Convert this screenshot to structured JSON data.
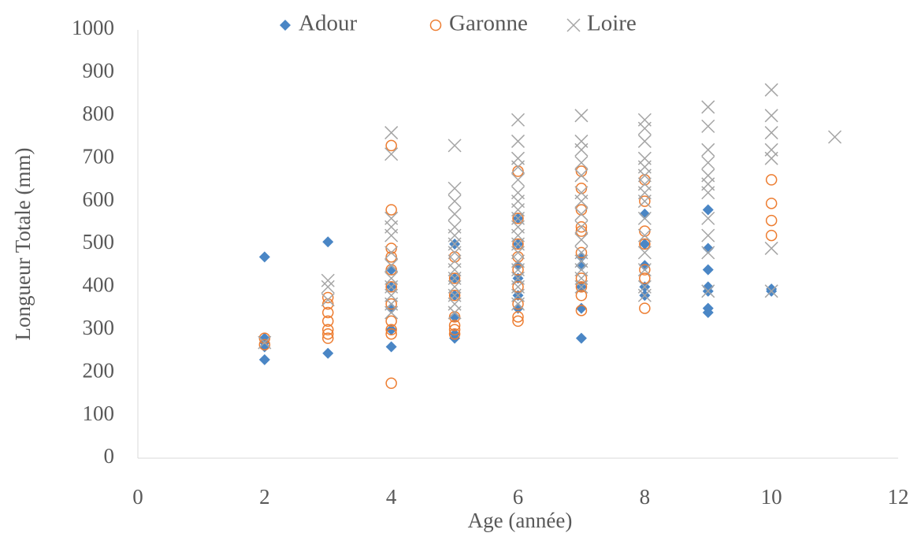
{
  "chart_data": {
    "type": "scatter",
    "xlabel": "Age (année)",
    "ylabel": "Longueur  Totale (mm)",
    "xlim": [
      0,
      12
    ],
    "xticks": [
      0,
      2,
      4,
      6,
      8,
      10,
      12
    ],
    "ylim": [
      0,
      1000
    ],
    "yticks": [
      0,
      100,
      200,
      300,
      400,
      500,
      600,
      700,
      800,
      900,
      1000
    ],
    "legend": "top",
    "series": [
      {
        "name": "Adour",
        "color": "#4a86c5",
        "marker": "diamond",
        "x": [
          2,
          2,
          2,
          2,
          2,
          3,
          3,
          4,
          4,
          4,
          4,
          4,
          5,
          5,
          5,
          5,
          5,
          5,
          6,
          6,
          6,
          6,
          6,
          6,
          7,
          7,
          7,
          7,
          7,
          8,
          8,
          8,
          8,
          8,
          9,
          9,
          9,
          9,
          9,
          9,
          9,
          10,
          10
        ],
        "y": [
          470,
          280,
          270,
          260,
          230,
          505,
          245,
          440,
          400,
          350,
          300,
          260,
          500,
          420,
          380,
          330,
          290,
          280,
          560,
          500,
          450,
          420,
          380,
          350,
          470,
          450,
          400,
          350,
          280,
          570,
          500,
          450,
          400,
          380,
          580,
          490,
          440,
          400,
          390,
          350,
          340,
          395,
          390
        ]
      },
      {
        "name": "Garonne",
        "color": "#ed7d31",
        "marker": "circle",
        "x": [
          2,
          2,
          3,
          3,
          3,
          3,
          3,
          3,
          3,
          4,
          4,
          4,
          4,
          4,
          4,
          4,
          4,
          4,
          4,
          4,
          5,
          5,
          5,
          5,
          5,
          5,
          5,
          6,
          6,
          6,
          6,
          6,
          6,
          6,
          6,
          6,
          7,
          7,
          7,
          7,
          7,
          7,
          7,
          7,
          7,
          7,
          8,
          8,
          8,
          8,
          8,
          8,
          8,
          10,
          10,
          10,
          10
        ],
        "y": [
          280,
          265,
          375,
          360,
          340,
          320,
          300,
          290,
          280,
          730,
          580,
          490,
          470,
          440,
          400,
          360,
          320,
          300,
          290,
          175,
          470,
          420,
          380,
          330,
          310,
          300,
          290,
          670,
          560,
          500,
          470,
          440,
          400,
          360,
          330,
          320,
          670,
          630,
          580,
          540,
          530,
          480,
          420,
          400,
          380,
          345,
          650,
          600,
          530,
          500,
          440,
          420,
          350,
          650,
          595,
          555,
          520
        ]
      },
      {
        "name": "Loire",
        "color": "#a5a5a5",
        "marker": "x",
        "x": [
          2,
          3,
          3,
          3,
          4,
          4,
          4,
          4,
          4,
          4,
          4,
          4,
          4,
          4,
          4,
          4,
          5,
          5,
          5,
          5,
          5,
          5,
          5,
          5,
          5,
          5,
          5,
          5,
          5,
          5,
          5,
          6,
          6,
          6,
          6,
          6,
          6,
          6,
          6,
          6,
          6,
          6,
          6,
          6,
          6,
          6,
          6,
          6,
          6,
          6,
          7,
          7,
          7,
          7,
          7,
          7,
          7,
          7,
          7,
          7,
          7,
          7,
          7,
          7,
          7,
          8,
          8,
          8,
          8,
          8,
          8,
          8,
          8,
          8,
          8,
          8,
          8,
          8,
          8,
          8,
          9,
          9,
          9,
          9,
          9,
          9,
          9,
          9,
          9,
          9,
          9,
          10,
          10,
          10,
          10,
          10,
          10,
          10,
          11
        ],
        "y": [
          270,
          415,
          400,
          370,
          760,
          710,
          560,
          540,
          520,
          480,
          450,
          420,
          400,
          380,
          360,
          340,
          730,
          630,
          600,
          570,
          540,
          520,
          500,
          480,
          460,
          440,
          420,
          400,
          380,
          360,
          340,
          790,
          740,
          700,
          680,
          650,
          620,
          600,
          580,
          560,
          540,
          520,
          500,
          480,
          460,
          440,
          420,
          400,
          380,
          360,
          800,
          740,
          720,
          690,
          660,
          620,
          600,
          570,
          540,
          510,
          480,
          460,
          440,
          420,
          400,
          790,
          770,
          740,
          700,
          680,
          660,
          640,
          620,
          600,
          560,
          520,
          480,
          440,
          400,
          380,
          820,
          775,
          720,
          690,
          660,
          640,
          620,
          560,
          520,
          480,
          390,
          860,
          800,
          760,
          720,
          700,
          490,
          390,
          750
        ]
      }
    ]
  }
}
